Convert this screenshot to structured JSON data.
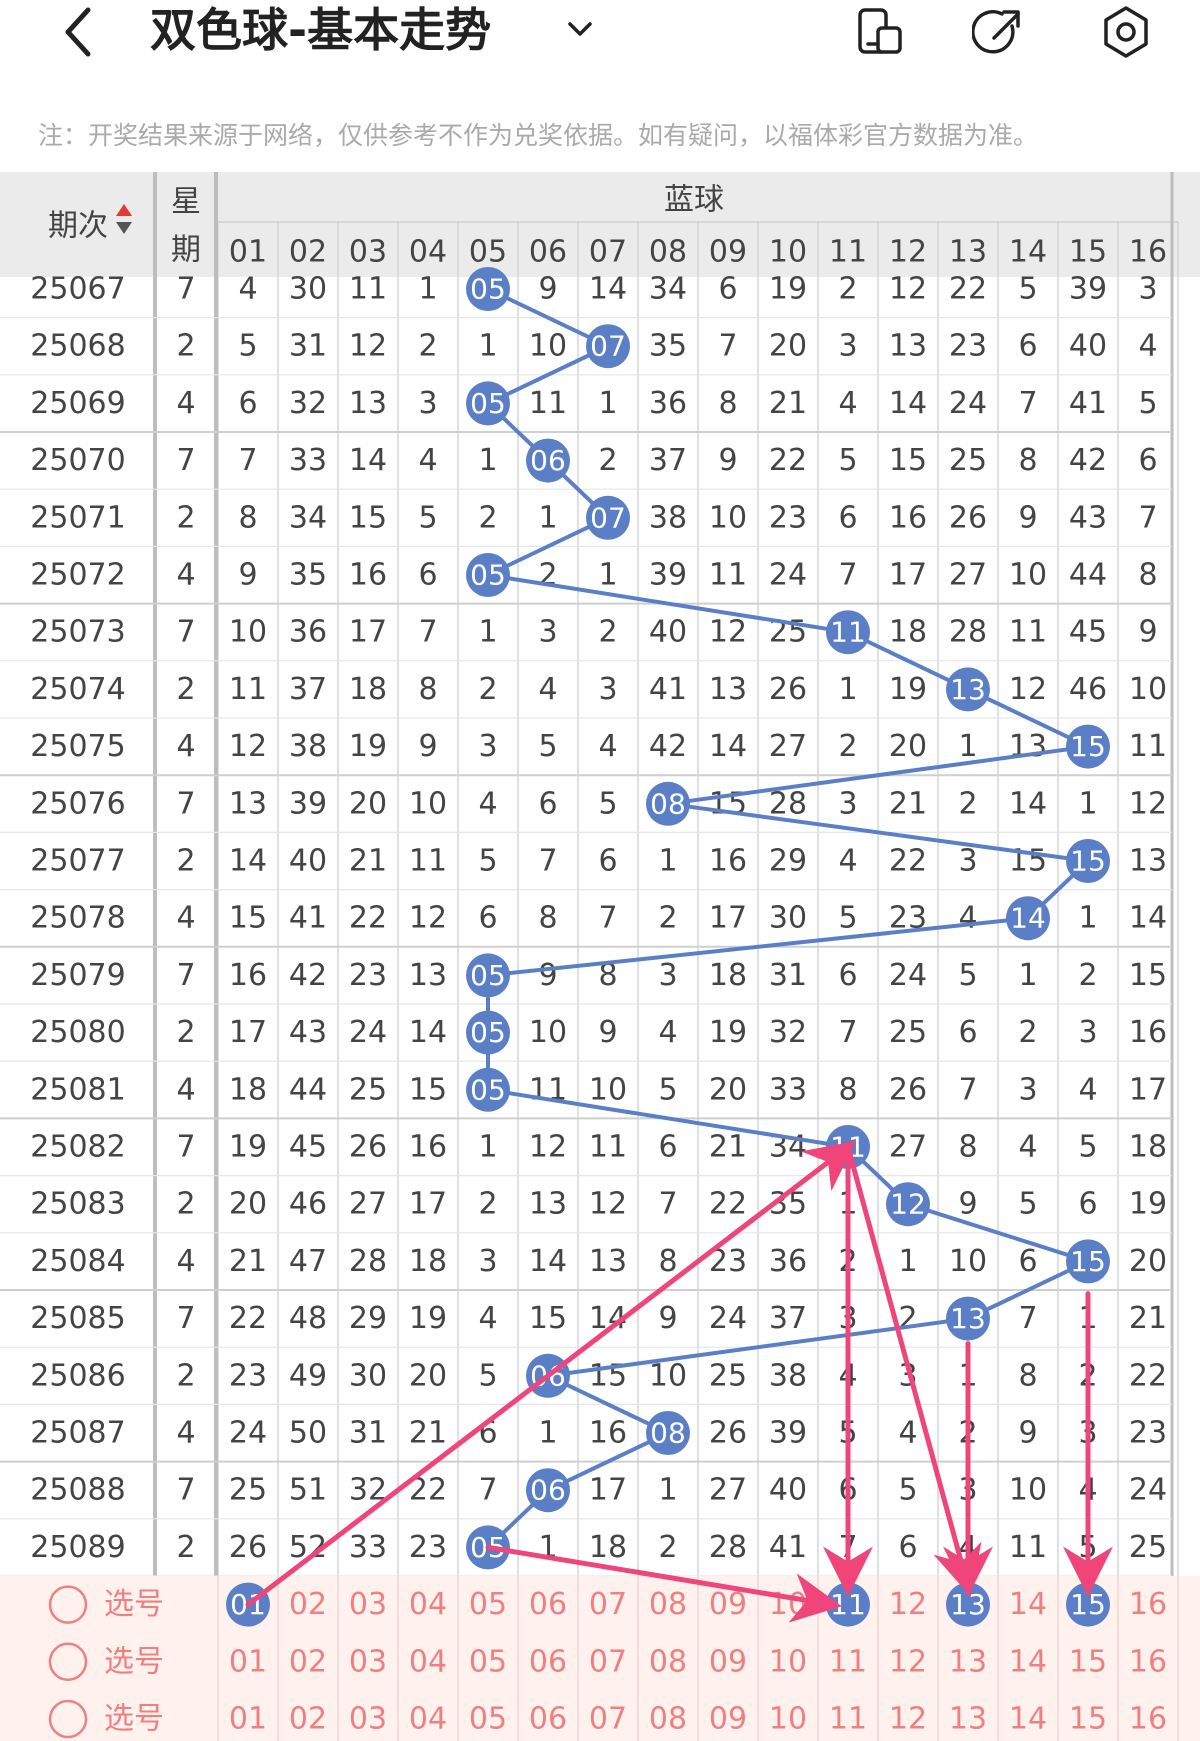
{
  "header": {
    "title": "双色球-基本走势",
    "icons": [
      "back-arrow-icon",
      "chevron-down-icon",
      "phone-icon",
      "share-icon",
      "settings-icon"
    ]
  },
  "note": "注：开奖结果来源于网络，仅供参考不作为兑奖依据。如有疑问，以福体彩官方数据为准。",
  "table": {
    "col_period": "期次",
    "col_week": [
      "星",
      "期"
    ],
    "group_label": "蓝球",
    "numbers": [
      "01",
      "02",
      "03",
      "04",
      "05",
      "06",
      "07",
      "08",
      "09",
      "10",
      "11",
      "12",
      "13",
      "14",
      "15",
      "16"
    ],
    "rows": [
      {
        "period": "25067",
        "week": "7",
        "cells": [
          4,
          30,
          11,
          1,
          "05",
          9,
          14,
          34,
          6,
          19,
          2,
          12,
          22,
          5,
          39,
          3
        ],
        "hit": 5
      },
      {
        "period": "25068",
        "week": "2",
        "cells": [
          5,
          31,
          12,
          2,
          1,
          10,
          "07",
          35,
          7,
          20,
          3,
          13,
          23,
          6,
          40,
          4
        ],
        "hit": 7
      },
      {
        "period": "25069",
        "week": "4",
        "cells": [
          6,
          32,
          13,
          3,
          "05",
          11,
          1,
          36,
          8,
          21,
          4,
          14,
          24,
          7,
          41,
          5
        ],
        "hit": 5
      },
      {
        "period": "25070",
        "week": "7",
        "cells": [
          7,
          33,
          14,
          4,
          1,
          "06",
          2,
          37,
          9,
          22,
          5,
          15,
          25,
          8,
          42,
          6
        ],
        "hit": 6
      },
      {
        "period": "25071",
        "week": "2",
        "cells": [
          8,
          34,
          15,
          5,
          2,
          1,
          "07",
          38,
          10,
          23,
          6,
          16,
          26,
          9,
          43,
          7
        ],
        "hit": 7
      },
      {
        "period": "25072",
        "week": "4",
        "cells": [
          9,
          35,
          16,
          6,
          "05",
          2,
          1,
          39,
          11,
          24,
          7,
          17,
          27,
          10,
          44,
          8
        ],
        "hit": 5
      },
      {
        "period": "25073",
        "week": "7",
        "cells": [
          10,
          36,
          17,
          7,
          1,
          3,
          2,
          40,
          12,
          25,
          "11",
          18,
          28,
          11,
          45,
          9
        ],
        "hit": 11
      },
      {
        "period": "25074",
        "week": "2",
        "cells": [
          11,
          37,
          18,
          8,
          2,
          4,
          3,
          41,
          13,
          26,
          1,
          19,
          "13",
          12,
          46,
          10
        ],
        "hit": 13
      },
      {
        "period": "25075",
        "week": "4",
        "cells": [
          12,
          38,
          19,
          9,
          3,
          5,
          4,
          42,
          14,
          27,
          2,
          20,
          1,
          13,
          "15",
          11
        ],
        "hit": 15
      },
      {
        "period": "25076",
        "week": "7",
        "cells": [
          13,
          39,
          20,
          10,
          4,
          6,
          5,
          "08",
          15,
          28,
          3,
          21,
          2,
          14,
          1,
          12
        ],
        "hit": 8
      },
      {
        "period": "25077",
        "week": "2",
        "cells": [
          14,
          40,
          21,
          11,
          5,
          7,
          6,
          1,
          16,
          29,
          4,
          22,
          3,
          15,
          "15",
          13
        ],
        "hit": 15
      },
      {
        "period": "25078",
        "week": "4",
        "cells": [
          15,
          41,
          22,
          12,
          6,
          8,
          7,
          2,
          17,
          30,
          5,
          23,
          4,
          "14",
          1,
          14
        ],
        "hit": 14
      },
      {
        "period": "25079",
        "week": "7",
        "cells": [
          16,
          42,
          23,
          13,
          "05",
          9,
          8,
          3,
          18,
          31,
          6,
          24,
          5,
          1,
          2,
          15
        ],
        "hit": 5
      },
      {
        "period": "25080",
        "week": "2",
        "cells": [
          17,
          43,
          24,
          14,
          "05",
          10,
          9,
          4,
          19,
          32,
          7,
          25,
          6,
          2,
          3,
          16
        ],
        "hit": 5
      },
      {
        "period": "25081",
        "week": "4",
        "cells": [
          18,
          44,
          25,
          15,
          "05",
          11,
          10,
          5,
          20,
          33,
          8,
          26,
          7,
          3,
          4,
          17
        ],
        "hit": 5
      },
      {
        "period": "25082",
        "week": "7",
        "cells": [
          19,
          45,
          26,
          16,
          1,
          12,
          11,
          6,
          21,
          34,
          "11",
          27,
          8,
          4,
          5,
          18
        ],
        "hit": 11
      },
      {
        "period": "25083",
        "week": "2",
        "cells": [
          20,
          46,
          27,
          17,
          2,
          13,
          12,
          7,
          22,
          35,
          1,
          "12",
          9,
          5,
          6,
          19
        ],
        "hit": 12
      },
      {
        "period": "25084",
        "week": "4",
        "cells": [
          21,
          47,
          28,
          18,
          3,
          14,
          13,
          8,
          23,
          36,
          2,
          1,
          10,
          6,
          "15",
          20
        ],
        "hit": 15
      },
      {
        "period": "25085",
        "week": "7",
        "cells": [
          22,
          48,
          29,
          19,
          4,
          15,
          14,
          9,
          24,
          37,
          3,
          2,
          "13",
          7,
          1,
          21
        ],
        "hit": 13
      },
      {
        "period": "25086",
        "week": "2",
        "cells": [
          23,
          49,
          30,
          20,
          5,
          "06",
          15,
          10,
          25,
          38,
          4,
          3,
          1,
          8,
          2,
          22
        ],
        "hit": 6
      },
      {
        "period": "25087",
        "week": "4",
        "cells": [
          24,
          50,
          31,
          21,
          6,
          1,
          16,
          "08",
          26,
          39,
          5,
          4,
          2,
          9,
          3,
          23
        ],
        "hit": 8
      },
      {
        "period": "25088",
        "week": "7",
        "cells": [
          25,
          51,
          32,
          22,
          7,
          "06",
          17,
          1,
          27,
          40,
          6,
          5,
          3,
          10,
          4,
          24
        ],
        "hit": 6
      },
      {
        "period": "25089",
        "week": "2",
        "cells": [
          26,
          52,
          33,
          23,
          "05",
          1,
          18,
          2,
          28,
          41,
          7,
          6,
          4,
          11,
          5,
          25
        ],
        "hit": 5
      }
    ],
    "select_label": "选号",
    "selected_balls": [
      1,
      11,
      13,
      15
    ]
  },
  "colors": {
    "ball": "#5b7fc7",
    "arrow": "#f0457a",
    "select_bg": "#fff1ee",
    "select_text": "#f08080"
  }
}
